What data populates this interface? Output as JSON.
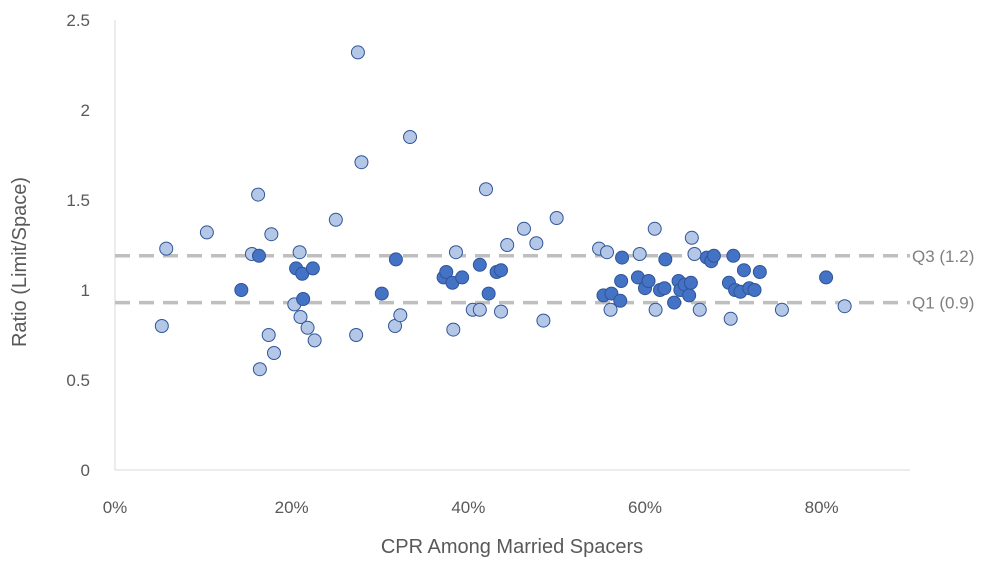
{
  "chart_data": {
    "type": "scatter",
    "title": "",
    "xlabel": "CPR Among Married Spacers",
    "ylabel": "Ratio (Limit/Space)",
    "xlim": [
      0,
      0.9
    ],
    "ylim": [
      0,
      2.5
    ],
    "x_ticks": [
      "0%",
      "20%",
      "40%",
      "60%",
      "80%"
    ],
    "y_ticks": [
      "0",
      "0.5",
      "1",
      "1.5",
      "2",
      "2.5"
    ],
    "grid": false,
    "legend": "none",
    "colors": {
      "light": "#b4c7e7",
      "dark": "#4472c4",
      "light_edge": "#2f5597",
      "dark_edge": "#2f5597",
      "ref_line": "#bfbfbf"
    },
    "reference_lines": [
      {
        "label": "Q3 (1.2)",
        "y": 1.19
      },
      {
        "label": "Q1 (0.9)",
        "y": 0.93
      }
    ],
    "series": [
      {
        "style": "light",
        "points": [
          [
            0.053,
            0.8
          ],
          [
            0.058,
            1.23
          ],
          [
            0.104,
            1.32
          ],
          [
            0.155,
            1.2
          ],
          [
            0.162,
            1.53
          ],
          [
            0.164,
            0.56
          ],
          [
            0.174,
            0.75
          ],
          [
            0.177,
            1.31
          ],
          [
            0.18,
            0.65
          ],
          [
            0.203,
            0.92
          ],
          [
            0.209,
            1.21
          ],
          [
            0.21,
            0.85
          ],
          [
            0.218,
            0.79
          ],
          [
            0.226,
            0.72
          ],
          [
            0.25,
            1.39
          ],
          [
            0.273,
            0.75
          ],
          [
            0.275,
            2.32
          ],
          [
            0.279,
            1.71
          ],
          [
            0.317,
            0.8
          ],
          [
            0.323,
            0.86
          ],
          [
            0.334,
            1.85
          ],
          [
            0.383,
            0.78
          ],
          [
            0.386,
            1.21
          ],
          [
            0.405,
            0.89
          ],
          [
            0.413,
            0.89
          ],
          [
            0.42,
            1.56
          ],
          [
            0.437,
            0.88
          ],
          [
            0.444,
            1.25
          ],
          [
            0.463,
            1.34
          ],
          [
            0.477,
            1.26
          ],
          [
            0.485,
            0.83
          ],
          [
            0.5,
            1.4
          ],
          [
            0.548,
            1.23
          ],
          [
            0.557,
            1.21
          ],
          [
            0.561,
            0.89
          ],
          [
            0.594,
            1.2
          ],
          [
            0.611,
            1.34
          ],
          [
            0.612,
            0.89
          ],
          [
            0.653,
            1.29
          ],
          [
            0.656,
            1.2
          ],
          [
            0.662,
            0.89
          ],
          [
            0.697,
            0.84
          ],
          [
            0.755,
            0.89
          ],
          [
            0.826,
            0.91
          ]
        ]
      },
      {
        "style": "dark",
        "points": [
          [
            0.143,
            1.0
          ],
          [
            0.163,
            1.19
          ],
          [
            0.205,
            1.12
          ],
          [
            0.212,
            1.09
          ],
          [
            0.213,
            0.95
          ],
          [
            0.224,
            1.12
          ],
          [
            0.302,
            0.98
          ],
          [
            0.318,
            1.17
          ],
          [
            0.372,
            1.07
          ],
          [
            0.375,
            1.1
          ],
          [
            0.382,
            1.04
          ],
          [
            0.393,
            1.07
          ],
          [
            0.413,
            1.14
          ],
          [
            0.423,
            0.98
          ],
          [
            0.432,
            1.1
          ],
          [
            0.437,
            1.11
          ],
          [
            0.553,
            0.97
          ],
          [
            0.562,
            0.98
          ],
          [
            0.572,
            0.94
          ],
          [
            0.573,
            1.05
          ],
          [
            0.574,
            1.18
          ],
          [
            0.592,
            1.07
          ],
          [
            0.6,
            1.01
          ],
          [
            0.604,
            1.05
          ],
          [
            0.617,
            1.0
          ],
          [
            0.622,
            1.01
          ],
          [
            0.623,
            1.17
          ],
          [
            0.633,
            0.93
          ],
          [
            0.638,
            1.05
          ],
          [
            0.64,
            1.0
          ],
          [
            0.645,
            1.03
          ],
          [
            0.65,
            0.97
          ],
          [
            0.652,
            1.04
          ],
          [
            0.67,
            1.18
          ],
          [
            0.675,
            1.16
          ],
          [
            0.678,
            1.19
          ],
          [
            0.695,
            1.04
          ],
          [
            0.7,
            1.19
          ],
          [
            0.702,
            1.0
          ],
          [
            0.708,
            0.99
          ],
          [
            0.712,
            1.11
          ],
          [
            0.718,
            1.01
          ],
          [
            0.724,
            1.0
          ],
          [
            0.73,
            1.1
          ],
          [
            0.805,
            1.07
          ]
        ]
      }
    ]
  }
}
